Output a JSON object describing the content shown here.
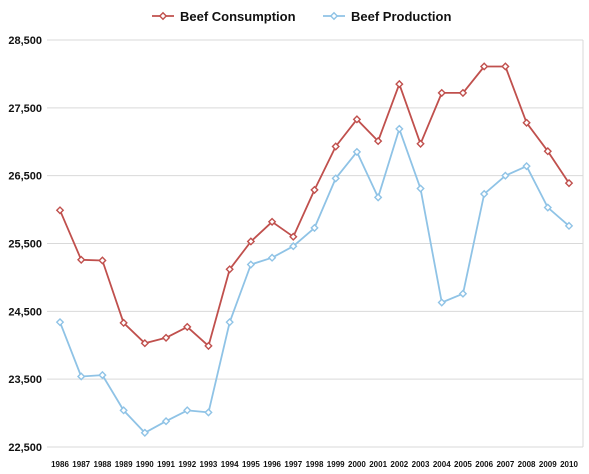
{
  "chart_data": {
    "type": "line",
    "title": "",
    "xlabel": "",
    "ylabel": "",
    "categories": [
      "1986",
      "1987",
      "1988",
      "1989",
      "1990",
      "1991",
      "1992",
      "1993",
      "1994",
      "1995",
      "1996",
      "1997",
      "1998",
      "1999",
      "2000",
      "2001",
      "2002",
      "2003",
      "2004",
      "2005",
      "2006",
      "2007",
      "2008",
      "2009",
      "2010"
    ],
    "ylim": [
      22500,
      28500
    ],
    "yticks": [
      22500,
      23500,
      24500,
      25500,
      26500,
      27500,
      28500
    ],
    "ytick_labels": [
      "22,500",
      "23,500",
      "24,500",
      "25,500",
      "26,500",
      "27,500",
      "28,500"
    ],
    "grid": "horizontal",
    "legend_position": "top-center",
    "series": [
      {
        "name": "Beef Consumption",
        "color": "#c0504d",
        "marker": "diamond",
        "values": [
          25990,
          25260,
          25250,
          24330,
          24030,
          24110,
          24270,
          23990,
          25120,
          25530,
          25820,
          25600,
          26290,
          26930,
          27330,
          27010,
          27850,
          26970,
          27720,
          27720,
          28110,
          28110,
          27280,
          26860,
          26390
        ]
      },
      {
        "name": "Beef Production",
        "color": "#8fc3e6",
        "marker": "diamond",
        "values": [
          24340,
          23540,
          23560,
          23040,
          22710,
          22880,
          23040,
          23010,
          24340,
          25190,
          25290,
          25460,
          25730,
          26460,
          26850,
          26180,
          27190,
          26310,
          24630,
          24760,
          26230,
          26500,
          26640,
          26030,
          25760
        ]
      }
    ]
  }
}
